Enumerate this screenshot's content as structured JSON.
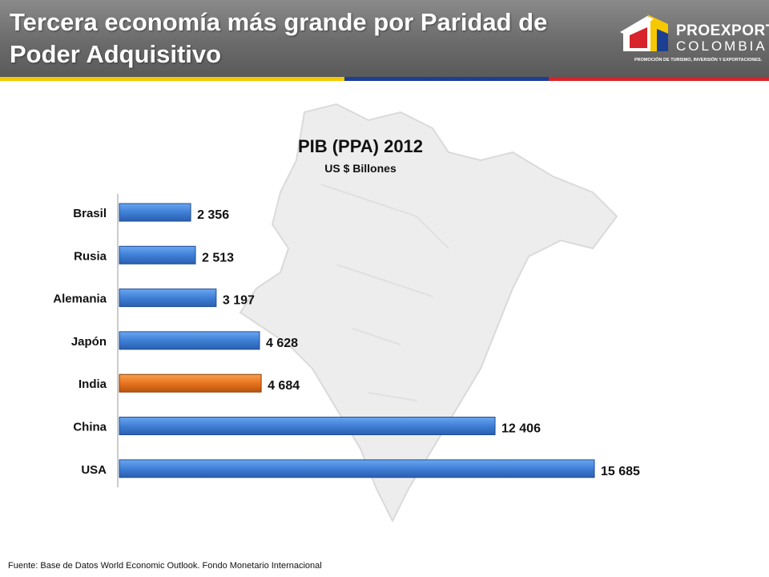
{
  "header": {
    "title": "Tercera economía más grande por Paridad de Poder Adquisitivo"
  },
  "logo": {
    "word1": "PROEXPORT",
    "word2": "COLOMBIA",
    "tagline": "PROMOCIÓN DE TURISMO, INVERSIÓN Y EXPORTACIONES."
  },
  "colors": {
    "bar": "#3f7fd6",
    "highlight": "#e8731e",
    "stripe_yellow": "#f5c800",
    "stripe_blue": "#1c3f94",
    "stripe_red": "#d8232a"
  },
  "chart_data": {
    "type": "bar",
    "orientation": "horizontal",
    "title": "PIB (PPA) 2012",
    "subtitle": "US $ Billones",
    "categories": [
      "Brasil",
      "Rusia",
      "Alemania",
      "Japón",
      "India",
      "China",
      "USA"
    ],
    "values": [
      2356,
      2513,
      3197,
      4628,
      4684,
      12406,
      15685
    ],
    "value_labels": [
      "2 356",
      "2 513",
      "3 197",
      "4 628",
      "4 684",
      "12 406",
      "15 685"
    ],
    "highlight": "India",
    "xlim": [
      0,
      16000
    ],
    "grid": false,
    "legend": "none"
  },
  "footer": {
    "source": "Fuente: Base de Datos World Economic Outlook. Fondo Monetario Internacional"
  }
}
